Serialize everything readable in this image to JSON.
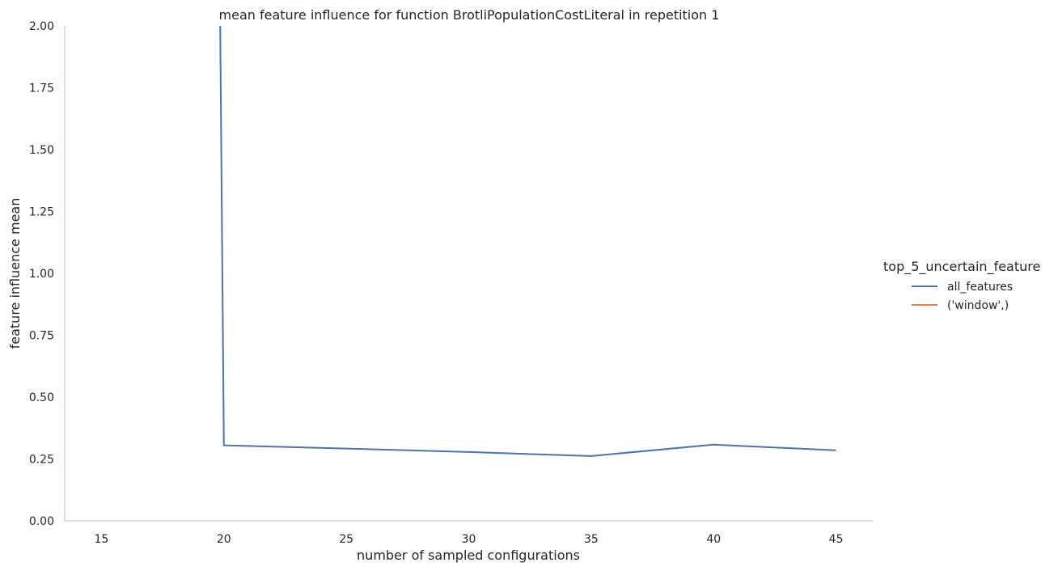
{
  "chart_data": {
    "type": "line",
    "title": "mean feature influence for function BrotliPopulationCostLiteral in repetition 1",
    "xlabel": "number of sampled configurations",
    "ylabel": "feature influence mean",
    "xlim": [
      13.5,
      46.5
    ],
    "ylim": [
      0,
      2.0
    ],
    "xticks": [
      15,
      20,
      25,
      30,
      35,
      40,
      45
    ],
    "yticks": [
      "0.00",
      "0.25",
      "0.50",
      "0.75",
      "1.00",
      "1.25",
      "1.50",
      "1.75",
      "2.00"
    ],
    "grid": false,
    "legend": {
      "title": "top_5_uncertain_feature",
      "placement": "right"
    },
    "series": [
      {
        "name": "all_features",
        "color": "#4c72b0",
        "points": [
          [
            19.85,
            2.0
          ],
          [
            20,
            0.305
          ],
          [
            25,
            0.292
          ],
          [
            30,
            0.278
          ],
          [
            35,
            0.262
          ],
          [
            40,
            0.308
          ],
          [
            45,
            0.285
          ]
        ]
      },
      {
        "name": "('window',)",
        "color": "#dd8452",
        "points": []
      }
    ]
  }
}
